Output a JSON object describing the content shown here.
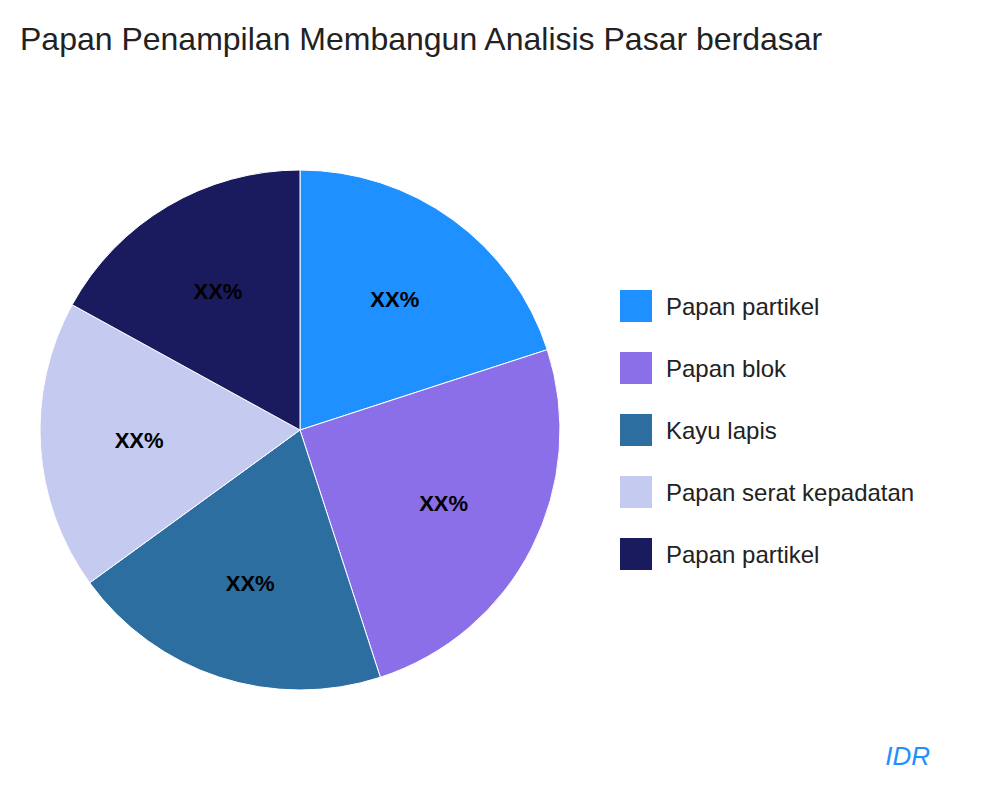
{
  "chart_data": {
    "type": "pie",
    "title": "Papan Penampilan Membangun Analisis Pasar berdasar",
    "categories": [
      "Papan partikel",
      "Papan blok",
      "Kayu lapis",
      "Papan serat kepadatan",
      "Papan partikel"
    ],
    "values": [
      20,
      25,
      20,
      18,
      17
    ],
    "value_labels": [
      "XX%",
      "XX%",
      "XX%",
      "XX%",
      "XX%"
    ],
    "colors": [
      "#1E90FF",
      "#8B6FE8",
      "#2C6EA0",
      "#C5CAF0",
      "#1A1A5E"
    ],
    "data_labels": true,
    "legend": "right",
    "annotations": [
      {
        "text": "IDR",
        "color": "#1E90FF"
      }
    ]
  }
}
